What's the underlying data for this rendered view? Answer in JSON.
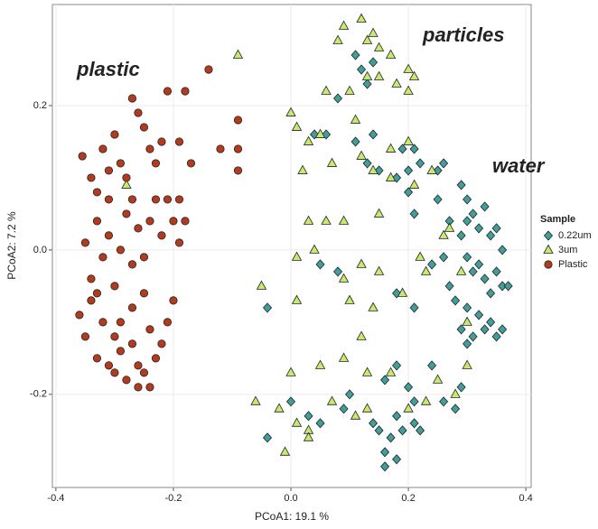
{
  "chart_data": {
    "type": "scatter",
    "x_label": "PCoA1: 19.1 %",
    "y_label": "PCoA2: 7.2 %",
    "xlim": [
      -0.406,
      0.409
    ],
    "ylim": [
      -0.329,
      0.34
    ],
    "xticks": [
      -0.4,
      -0.2,
      {
        "value": 0,
        "label": "0.0"
      },
      0.2,
      0.4
    ],
    "yticks": [
      -0.2,
      {
        "value": 0,
        "label": "0.0"
      },
      0.2
    ],
    "grid": true,
    "legend_title": "Sample",
    "legend_position": "right",
    "annotations": [
      {
        "text": "plastic",
        "color": "#9b1c14"
      },
      {
        "text": "particles",
        "color": "#9a9a22"
      },
      {
        "text": "water",
        "color": "#3a8c8c"
      }
    ],
    "series": [
      {
        "name": "0.22um",
        "color": "#3f9f9c",
        "marker": "diamond",
        "x": [
          0.11,
          0.12,
          0.13,
          0.14,
          0.08,
          0.04,
          0.06,
          0.11,
          0.14,
          0.19,
          0.21,
          0.13,
          0.15,
          0.18,
          0.2,
          0.22,
          0.25,
          0.26,
          0.2,
          0.21,
          0.25,
          0.27,
          0.29,
          0.3,
          0.31,
          0.32,
          0.33,
          0.34,
          0.35,
          0.36,
          0.3,
          0.29,
          0.3,
          0.31,
          0.32,
          0.33,
          0.34,
          0.35,
          0.36,
          0.37,
          0.26,
          0.24,
          0.3,
          0.32,
          0.33,
          0.34,
          0.35,
          0.36,
          0.31,
          0.3,
          0.29,
          0.27,
          0.28,
          0.18,
          0.21,
          0.18,
          0.16,
          0.2,
          0.21,
          0.24,
          0.26,
          0.28,
          0.29,
          0.14,
          0.15,
          0.17,
          0.18,
          0.19,
          0.21,
          0.22,
          0.16,
          0.18,
          0.16,
          0.05,
          0.03,
          0,
          -0.04,
          0.09,
          0.1,
          -0.04,
          0.05,
          0.08
        ],
        "y": [
          0.27,
          0.25,
          0.23,
          0.26,
          0.21,
          0.16,
          0.16,
          0.15,
          0.16,
          0.14,
          0.14,
          0.12,
          0.11,
          0.1,
          0.11,
          0.12,
          0.11,
          0.12,
          0.08,
          0.05,
          0.07,
          0.04,
          0.09,
          0.07,
          0.05,
          0.03,
          0.06,
          0.02,
          0.03,
          0,
          0.04,
          0.02,
          -0.01,
          -0.03,
          -0.02,
          -0.04,
          -0.06,
          -0.03,
          -0.05,
          -0.05,
          -0.01,
          -0.02,
          -0.08,
          -0.09,
          -0.11,
          -0.1,
          -0.12,
          -0.11,
          -0.12,
          -0.13,
          -0.11,
          -0.05,
          -0.07,
          -0.06,
          -0.08,
          -0.16,
          -0.18,
          -0.19,
          -0.21,
          -0.16,
          -0.21,
          -0.22,
          -0.19,
          -0.24,
          -0.25,
          -0.26,
          -0.23,
          -0.25,
          -0.24,
          -0.25,
          -0.28,
          -0.29,
          -0.3,
          -0.24,
          -0.23,
          -0.21,
          -0.26,
          -0.22,
          -0.2,
          -0.08,
          -0.02,
          -0.03
        ]
      },
      {
        "name": "3um",
        "color": "#c6ea6e",
        "marker": "triangle",
        "x": [
          -0.09,
          0,
          0.01,
          0.05,
          0.09,
          0.12,
          0.08,
          0.13,
          0.14,
          0.15,
          0.17,
          0.2,
          0.21,
          0.13,
          0.15,
          0.1,
          0.18,
          0.06,
          0.2,
          0.11,
          0.2,
          0.17,
          0.12,
          0.07,
          0.03,
          0.02,
          -0.28,
          0.03,
          0.06,
          0.09,
          0.14,
          0.17,
          0.21,
          0.15,
          0.24,
          0.27,
          0.26,
          0.04,
          0.01,
          0.09,
          0.12,
          0.15,
          0.22,
          0.23,
          0.29,
          -0.05,
          0.01,
          0.1,
          0.14,
          0.19,
          0.12,
          0.09,
          0.13,
          0.05,
          0,
          -0.06,
          -0.02,
          0.01,
          0.03,
          0.07,
          0.11,
          0.13,
          0.17,
          0.2,
          0.23,
          0.25,
          0.28,
          0.3,
          -0.01,
          0.03,
          0.3
        ],
        "y": [
          0.27,
          0.19,
          0.17,
          0.16,
          0.31,
          0.32,
          0.29,
          0.29,
          0.3,
          0.28,
          0.27,
          0.25,
          0.24,
          0.24,
          0.24,
          0.22,
          0.23,
          0.22,
          0.22,
          0.18,
          0.15,
          0.14,
          0.13,
          0.12,
          0.15,
          0.11,
          0.09,
          0.04,
          0.04,
          0.04,
          0.11,
          0.1,
          0.09,
          0.05,
          0.11,
          0.03,
          0.02,
          0,
          -0.01,
          -0.04,
          -0.02,
          -0.03,
          -0.01,
          -0.03,
          -0.03,
          -0.05,
          -0.07,
          -0.07,
          -0.08,
          -0.06,
          -0.12,
          -0.15,
          -0.17,
          -0.16,
          -0.17,
          -0.21,
          -0.22,
          -0.24,
          -0.25,
          -0.21,
          -0.23,
          -0.22,
          -0.17,
          -0.22,
          -0.21,
          -0.18,
          -0.2,
          -0.16,
          -0.28,
          -0.26,
          -0.1
        ]
      },
      {
        "name": "Plastic",
        "color": "#b43a1e",
        "marker": "circle",
        "x": [
          -0.355,
          -0.34,
          -0.33,
          -0.32,
          -0.31,
          -0.3,
          -0.29,
          -0.28,
          -0.27,
          -0.26,
          -0.25,
          -0.24,
          -0.23,
          -0.22,
          -0.21,
          -0.18,
          -0.14,
          -0.12,
          -0.09,
          -0.09,
          -0.09,
          -0.17,
          -0.19,
          -0.35,
          -0.34,
          -0.33,
          -0.32,
          -0.31,
          -0.3,
          -0.29,
          -0.28,
          -0.27,
          -0.26,
          -0.25,
          -0.24,
          -0.23,
          -0.22,
          -0.21,
          -0.2,
          -0.19,
          -0.19,
          -0.18,
          -0.31,
          -0.27,
          -0.36,
          -0.35,
          -0.34,
          -0.33,
          -0.32,
          -0.31,
          -0.3,
          -0.29,
          -0.28,
          -0.27,
          -0.26,
          -0.25,
          -0.24,
          -0.23,
          -0.22,
          -0.21,
          -0.2,
          -0.3,
          -0.27,
          -0.25,
          -0.33,
          -0.29,
          -0.26,
          -0.24
        ],
        "y": [
          0.13,
          0.1,
          0.08,
          0.14,
          0.11,
          0.16,
          0.12,
          0.1,
          0.21,
          0.19,
          0.17,
          0.14,
          0.12,
          0.15,
          0.22,
          0.22,
          0.25,
          0.14,
          0.18,
          0.14,
          0.11,
          0.12,
          0.15,
          0.01,
          -0.04,
          0.04,
          -0.01,
          0.02,
          -0.05,
          0,
          0.05,
          -0.02,
          0.03,
          -0.01,
          0.04,
          0.07,
          0.02,
          0.07,
          0.04,
          0.07,
          0.01,
          0.04,
          0.07,
          0.07,
          -0.09,
          -0.12,
          -0.07,
          -0.15,
          -0.1,
          -0.16,
          -0.12,
          -0.14,
          -0.18,
          -0.13,
          -0.19,
          -0.17,
          -0.11,
          -0.15,
          -0.13,
          -0.1,
          -0.07,
          -0.17,
          -0.08,
          -0.06,
          -0.06,
          -0.1,
          -0.16,
          -0.19
        ]
      }
    ]
  }
}
